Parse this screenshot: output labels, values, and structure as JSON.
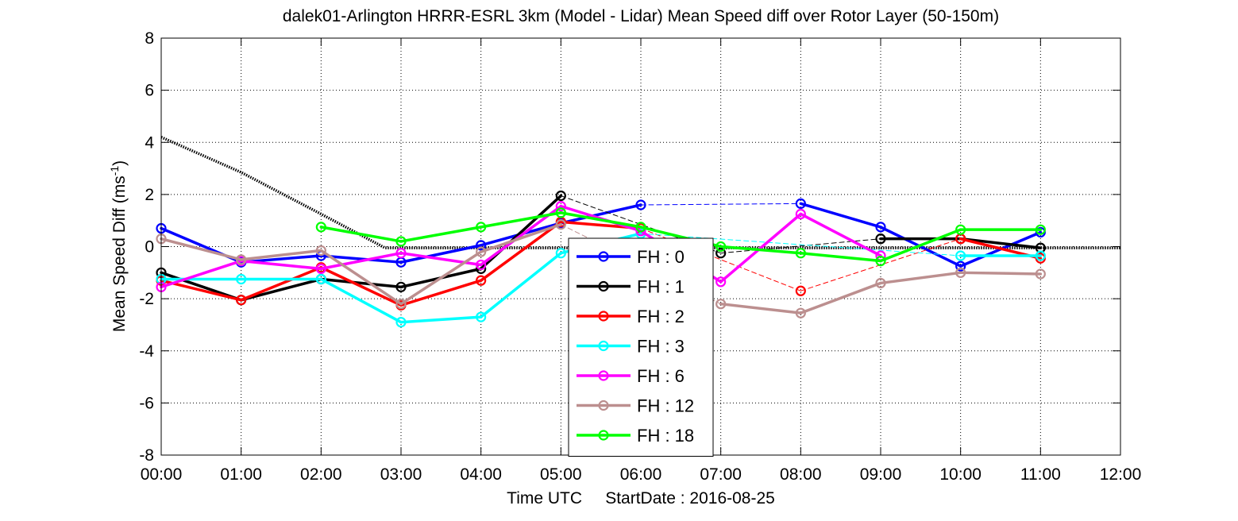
{
  "chart_data": {
    "type": "line",
    "title": "dalek01-Arlington HRRR-ESRL 3km (Model - Lidar) Mean Speed diff over Rotor Layer (50-150m)",
    "xlabel": "Time UTC     StartDate : 2016-08-25",
    "ylabel": "Mean Speed Diff (ms",
    "ylabel_sup": "-1",
    "ylabel_close": ")",
    "xlim": [
      0,
      12
    ],
    "ylim": [
      -8,
      8
    ],
    "x_ticks": [
      0,
      1,
      2,
      3,
      4,
      5,
      6,
      7,
      8,
      9,
      10,
      11,
      12
    ],
    "x_tick_labels": [
      "00:00",
      "01:00",
      "02:00",
      "03:00",
      "04:00",
      "05:00",
      "06:00",
      "07:00",
      "08:00",
      "09:00",
      "10:00",
      "11:00",
      "12:00"
    ],
    "y_ticks": [
      -8,
      -6,
      -4,
      -2,
      0,
      2,
      4,
      6,
      8
    ],
    "y_tick_labels": [
      "-8",
      "-6",
      "-4",
      "-2",
      "0",
      "2",
      "4",
      "6",
      "8"
    ],
    "grid": true,
    "legend_position": "center-bottom",
    "series": [
      {
        "name": "FH : 0",
        "color": "#0000ff",
        "points": [
          [
            0,
            0.7
          ],
          [
            1,
            -0.6
          ],
          [
            2,
            -0.35
          ],
          [
            3,
            -0.6
          ],
          [
            4,
            0.05
          ],
          [
            5,
            0.9
          ],
          [
            6,
            1.6
          ],
          [
            8,
            1.65
          ],
          [
            9,
            0.75
          ],
          [
            10,
            -0.75
          ],
          [
            11,
            0.55
          ]
        ]
      },
      {
        "name": "FH : 1",
        "color": "#000000",
        "points": [
          [
            0,
            -1.0
          ],
          [
            1,
            -2.05
          ],
          [
            2,
            -1.25
          ],
          [
            3,
            -1.55
          ],
          [
            4,
            -0.85
          ],
          [
            5,
            1.95
          ],
          [
            7,
            -0.25
          ],
          [
            9,
            0.3
          ],
          [
            10,
            0.3
          ],
          [
            11,
            -0.05
          ]
        ]
      },
      {
        "name": "FH : 2",
        "color": "#ff0000",
        "points": [
          [
            0,
            -1.3
          ],
          [
            1,
            -2.05
          ],
          [
            2,
            -0.8
          ],
          [
            3,
            -2.25
          ],
          [
            4,
            -1.3
          ],
          [
            5,
            0.95
          ],
          [
            6,
            0.7
          ],
          [
            8,
            -1.7
          ],
          [
            10,
            0.3
          ],
          [
            11,
            -0.45
          ]
        ]
      },
      {
        "name": "FH : 3",
        "color": "#00ffff",
        "points": [
          [
            0,
            -1.25
          ],
          [
            1,
            -1.25
          ],
          [
            2,
            -1.25
          ],
          [
            3,
            -2.9
          ],
          [
            4,
            -2.7
          ],
          [
            5,
            -0.25
          ],
          [
            6,
            0.5
          ],
          [
            10,
            -0.35
          ],
          [
            11,
            -0.35
          ]
        ]
      },
      {
        "name": "FH : 6",
        "color": "#ff00ff",
        "points": [
          [
            0,
            -1.55
          ],
          [
            1,
            -0.55
          ],
          [
            2,
            -0.85
          ],
          [
            3,
            -0.25
          ],
          [
            4,
            -0.7
          ],
          [
            5,
            1.55
          ],
          [
            6,
            0.6
          ],
          [
            7,
            -1.35
          ],
          [
            8,
            1.25
          ],
          [
            9,
            -0.35
          ]
        ]
      },
      {
        "name": "FH : 12",
        "color": "#bc8f8f",
        "points": [
          [
            0,
            0.3
          ],
          [
            1,
            -0.5
          ],
          [
            2,
            -0.15
          ],
          [
            3,
            -2.2
          ],
          [
            4,
            -0.2
          ],
          [
            5,
            0.85
          ],
          [
            7,
            -2.2
          ],
          [
            8,
            -2.55
          ],
          [
            9,
            -1.4
          ],
          [
            10,
            -1.0
          ],
          [
            11,
            -1.05
          ]
        ]
      },
      {
        "name": "FH : 18",
        "color": "#00ff00",
        "points": [
          [
            2,
            0.75
          ],
          [
            3,
            0.2
          ],
          [
            4,
            0.75
          ],
          [
            5,
            1.3
          ],
          [
            6,
            0.75
          ],
          [
            7,
            0.0
          ],
          [
            8,
            -0.25
          ],
          [
            9,
            -0.55
          ],
          [
            10,
            0.65
          ],
          [
            11,
            0.65
          ]
        ]
      }
    ],
    "reference_line": {
      "color": "#000000",
      "points": [
        [
          0,
          4.2
        ],
        [
          1,
          2.85
        ],
        [
          2,
          1.25
        ],
        [
          2.8,
          -0.05
        ],
        [
          12,
          -0.05
        ]
      ]
    }
  }
}
